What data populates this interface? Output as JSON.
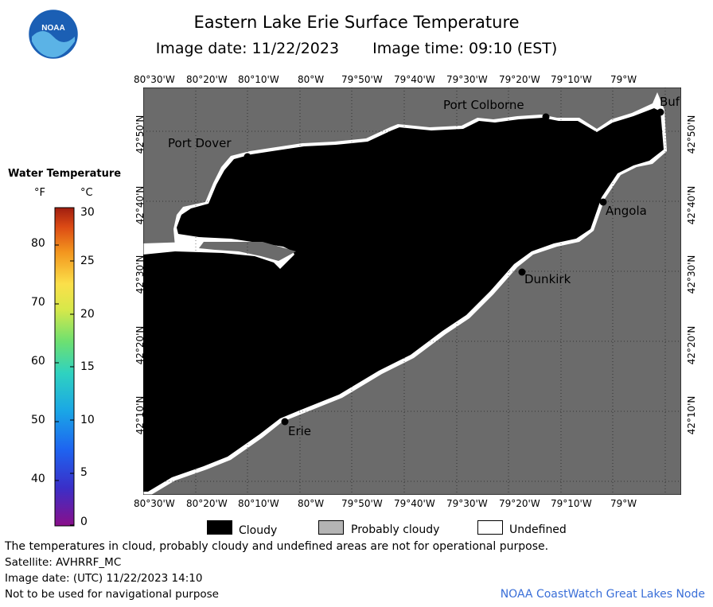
{
  "header": {
    "title": "Eastern Lake Erie Surface Temperature",
    "image_date": "Image date: 11/22/2023",
    "image_time": "Image time: 09:10 (EST)",
    "logo_text": "NOAA"
  },
  "map": {
    "lon_labels": [
      "80°30'W",
      "80°20'W",
      "80°10'W",
      "80°W",
      "79°50'W",
      "79°40'W",
      "79°30'W",
      "79°20'W",
      "79°10'W",
      "79°W"
    ],
    "lat_labels": [
      "42°50'N",
      "42°40'N",
      "42°30'N",
      "42°20'N",
      "42°10'N"
    ],
    "places": {
      "port_dover": "Port Dover",
      "port_colborne": "Port Colborne",
      "buffalo": "Buf",
      "angola": "Angola",
      "dunkirk": "Dunkirk",
      "erie": "Erie"
    },
    "colors": {
      "land": "#6b6b6b",
      "cloud": "#000000",
      "undefined": "#ffffff",
      "grid": "#000000"
    }
  },
  "colorbar": {
    "title": "Water Temperature",
    "unit_f": "°F",
    "unit_c": "°C",
    "f_labels": [
      "80",
      "70",
      "60",
      "50",
      "40"
    ],
    "c_labels": [
      "30",
      "25",
      "20",
      "15",
      "10",
      "5",
      "0"
    ]
  },
  "legend": {
    "cloudy": "Cloudy",
    "probably_cloudy": "Probably cloudy",
    "undefined": "Undefined",
    "colors": {
      "cloudy": "#000000",
      "probably_cloudy": "#b4b4b4",
      "undefined": "#ffffff"
    }
  },
  "footer": {
    "disclaimer": "The temperatures in cloud, probably cloudy and undefined areas are not for operational purpose.",
    "satellite": "Satellite: AVHRRF_MC",
    "utc_date": "Image date: (UTC) 11/22/2023  14:10",
    "nav_warning": "Not to be used for navigational purpose",
    "node": "NOAA CoastWatch Great Lakes Node"
  }
}
